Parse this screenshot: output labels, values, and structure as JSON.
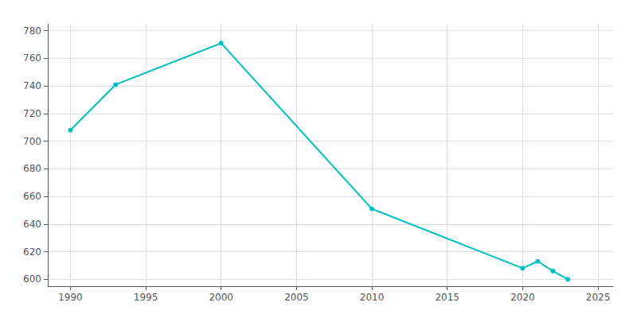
{
  "chart_data": {
    "type": "line",
    "x": [
      1990,
      1993,
      2000,
      2010,
      2020,
      2021,
      2022,
      2023
    ],
    "values": [
      708,
      741,
      771,
      651,
      608,
      613,
      606,
      600
    ],
    "color": "#00BFBF",
    "marker": "circle",
    "xlim": [
      1988.5,
      2026
    ],
    "xticks": [
      1990,
      1995,
      2000,
      2005,
      2010,
      2015,
      2020,
      2025
    ],
    "ylim": [
      595,
      785
    ],
    "yticks": [
      600,
      620,
      640,
      660,
      680,
      700,
      720,
      740,
      760,
      780
    ],
    "grid": true
  }
}
